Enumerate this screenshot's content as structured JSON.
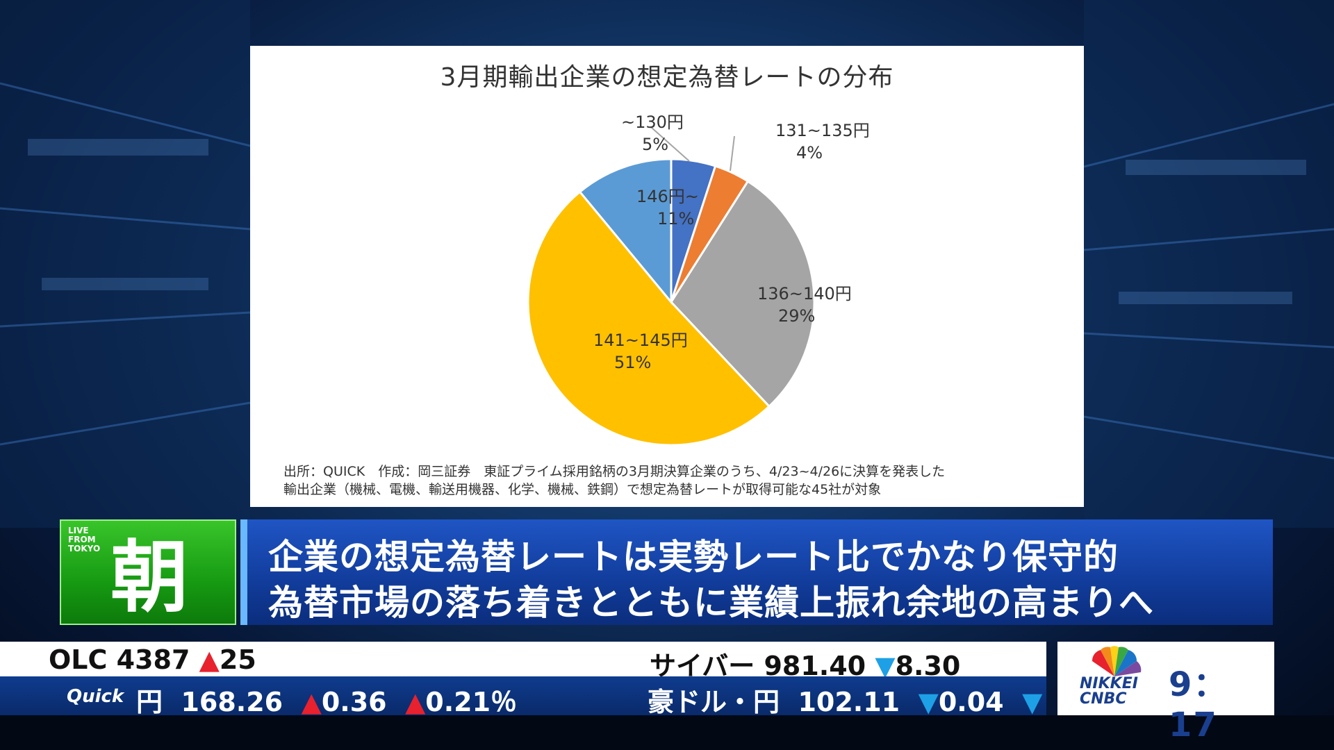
{
  "chart_data": {
    "type": "pie",
    "title": "3月期輸出企業の想定為替レートの分布",
    "slices": [
      {
        "label": "~130円",
        "value": 5,
        "pct_label": "5%",
        "color": "#4472c4"
      },
      {
        "label": "131~135円",
        "value": 4,
        "pct_label": "4%",
        "color": "#ed7d31"
      },
      {
        "label": "136~140円",
        "value": 29,
        "pct_label": "29%",
        "color": "#a5a5a5"
      },
      {
        "label": "141~145円",
        "value": 51,
        "pct_label": "51%",
        "color": "#ffc000"
      },
      {
        "label": "146円~",
        "value": 11,
        "pct_label": "11%",
        "color": "#5b9bd5"
      }
    ],
    "legend": "none"
  },
  "source": {
    "line1": "出所：QUICK　作成：岡三証券　東証プライム採用銘柄の3月期決算企業のうち、4/23~4/26に決算を発表した",
    "line2": "輸出企業（機械、電機、輸送用機器、化学、機械、鉄鋼）で想定為替レートが取得可能な45社が対象"
  },
  "program": {
    "live_tag": [
      "LIVE",
      "FROM",
      "TOKYO"
    ],
    "name": "朝"
  },
  "headline": {
    "line1": "企業の想定為替レートは実勢レート比でかなり保守的",
    "line2": "為替市場の落ち着きとともに業績上振れ余地の高まりへ"
  },
  "ticker": {
    "top": [
      {
        "name": "OLC",
        "price": "4387",
        "arrow": "▲",
        "change": "25",
        "dir": "up"
      },
      {
        "name": "サイバー",
        "price": "981.40",
        "arrow": "▼",
        "change": "8.30",
        "dir": "down"
      }
    ],
    "bottom": {
      "source": "Quick",
      "items": [
        {
          "name": "円",
          "price": "168.26",
          "arrow": "▲",
          "change": "0.36",
          "arrow2": "▲",
          "change2": "0.21％"
        },
        {
          "name": "豪ドル・円",
          "price": "102.11",
          "arrow": "▼",
          "change": "0.04",
          "arrow2": "▼",
          "change2": ""
        }
      ]
    }
  },
  "logo": {
    "line1": "NIKKEI",
    "line2": "CNBC"
  },
  "clock": "9：17",
  "colors": {
    "headline_bg": "#123e9e",
    "program_bg": "#169a12",
    "up": "#e8212e",
    "down": "#1ea0e6"
  }
}
